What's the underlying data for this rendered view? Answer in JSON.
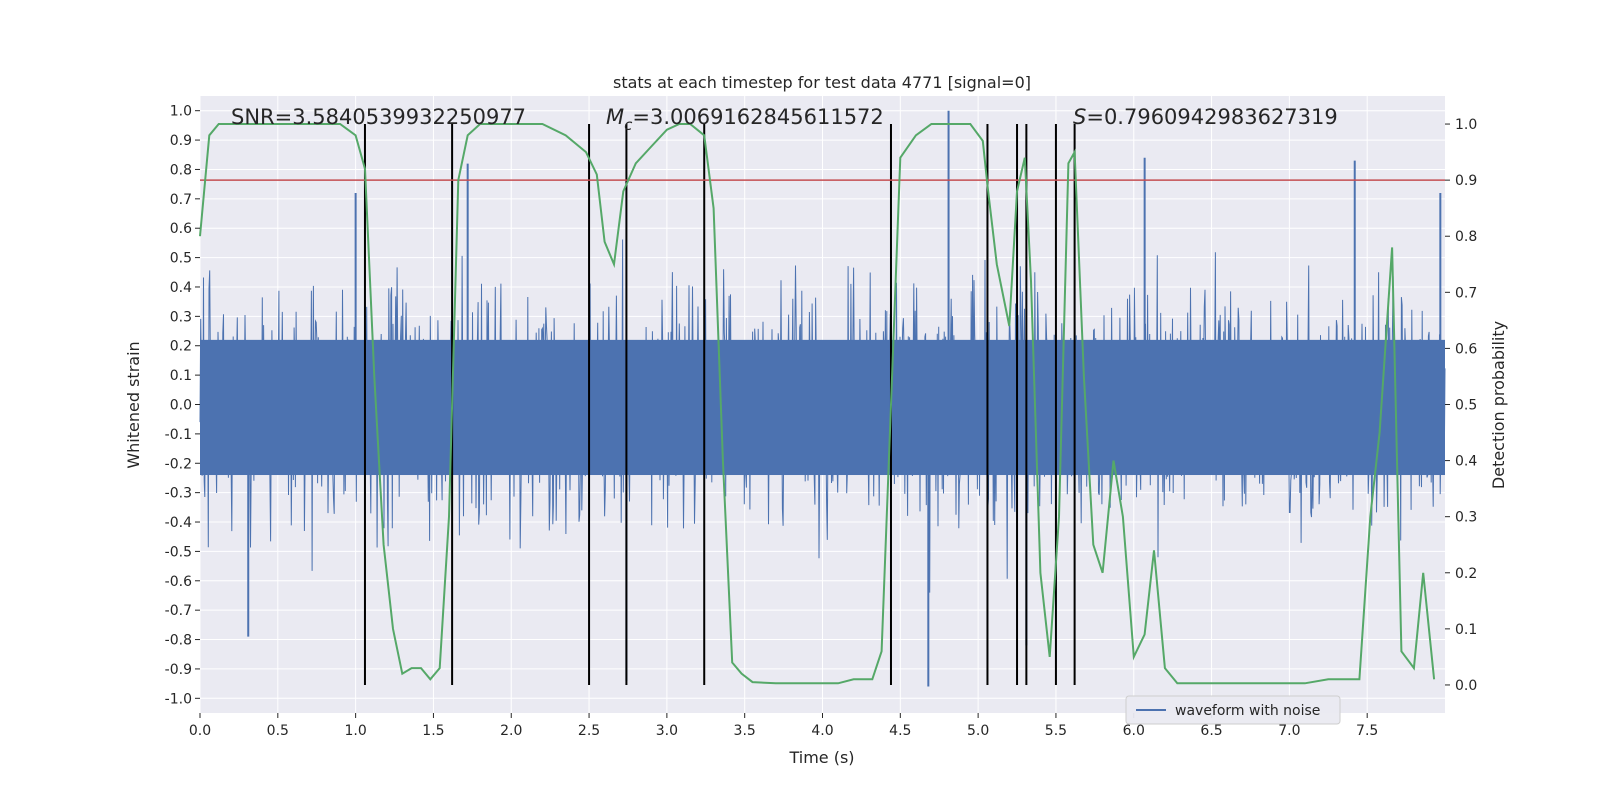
{
  "colors": {
    "background": "#eaeaf2",
    "grid": "#ffffff",
    "waveform": "#4c72b0",
    "probability": "#55a868",
    "threshold": "#c44e52",
    "event_lines": "#000000"
  },
  "chart_data": {
    "type": "line",
    "title": "stats at each timestep for test data 4771 [signal=0]",
    "xlabel": "Time (s)",
    "ylabel_left": "Whitened strain",
    "ylabel_right": "Detection probability",
    "xlim": [
      0.0,
      8.0
    ],
    "ylim_left": [
      -1.05,
      1.05
    ],
    "ylim_right": [
      -0.05,
      1.05
    ],
    "x_ticks": [
      "0.0",
      "0.5",
      "1.0",
      "1.5",
      "2.0",
      "2.5",
      "3.0",
      "3.5",
      "4.0",
      "4.5",
      "5.0",
      "5.5",
      "6.0",
      "6.5",
      "7.0",
      "7.5"
    ],
    "y_ticks_left": [
      "1.0",
      "0.9",
      "0.8",
      "0.7",
      "0.6",
      "0.5",
      "0.4",
      "0.3",
      "0.2",
      "0.1",
      "0.0",
      "-0.1",
      "-0.2",
      "-0.3",
      "-0.4",
      "-0.5",
      "-0.6",
      "-0.7",
      "-0.8",
      "-0.9",
      "-1.0"
    ],
    "y_ticks_right": [
      "1.0",
      "0.9",
      "0.8",
      "0.7",
      "0.6",
      "0.5",
      "0.4",
      "0.3",
      "0.2",
      "0.1",
      "0.0"
    ],
    "grid": true,
    "legend_position": "lower-right",
    "annotations": {
      "snr": "SNR=3.5840539932250977",
      "mc_symbol": "M",
      "mc_sub": "c",
      "mc_value": "=3.0069162845611572",
      "s_symbol": "S",
      "s_value": "=0.7960942983627319"
    },
    "threshold_right": 0.9,
    "event_lines_x": [
      1.06,
      1.62,
      2.5,
      2.74,
      3.24,
      4.44,
      5.06,
      5.25,
      5.31,
      5.5,
      5.62
    ],
    "series": [
      {
        "name": "waveform with noise",
        "axis": "left",
        "kind": "noise",
        "typical_amplitude": 0.42,
        "peak_amplitude": 0.86,
        "peaks": [
          [
            0.31,
            -0.79
          ],
          [
            1.0,
            0.72
          ],
          [
            1.72,
            0.82
          ],
          [
            2.74,
            -0.94
          ],
          [
            4.68,
            -0.96
          ],
          [
            4.81,
            1.0
          ],
          [
            5.31,
            -0.82
          ],
          [
            6.07,
            0.84
          ],
          [
            7.42,
            0.83
          ],
          [
            7.97,
            0.72
          ]
        ]
      },
      {
        "name": "Detection probability",
        "axis": "right",
        "x": [
          0.0,
          0.06,
          0.12,
          0.3,
          0.6,
          0.9,
          1.0,
          1.06,
          1.12,
          1.18,
          1.24,
          1.3,
          1.36,
          1.42,
          1.48,
          1.54,
          1.6,
          1.66,
          1.72,
          1.8,
          2.0,
          2.2,
          2.35,
          2.48,
          2.55,
          2.6,
          2.66,
          2.72,
          2.8,
          2.9,
          3.0,
          3.08,
          3.15,
          3.24,
          3.3,
          3.36,
          3.42,
          3.48,
          3.55,
          3.7,
          3.9,
          4.1,
          4.2,
          4.32,
          4.38,
          4.44,
          4.5,
          4.6,
          4.7,
          4.8,
          4.95,
          5.03,
          5.06,
          5.12,
          5.2,
          5.25,
          5.3,
          5.34,
          5.4,
          5.46,
          5.52,
          5.58,
          5.62,
          5.68,
          5.74,
          5.8,
          5.87,
          5.93,
          6.0,
          6.07,
          6.13,
          6.2,
          6.28,
          6.5,
          6.8,
          7.1,
          7.25,
          7.35,
          7.45,
          7.52,
          7.58,
          7.66,
          7.72,
          7.8,
          7.86,
          7.93
        ],
        "y": [
          0.8,
          0.98,
          1.0,
          1.0,
          1.0,
          1.0,
          0.98,
          0.92,
          0.55,
          0.25,
          0.1,
          0.02,
          0.03,
          0.03,
          0.01,
          0.03,
          0.3,
          0.9,
          0.98,
          1.0,
          1.0,
          1.0,
          0.98,
          0.95,
          0.91,
          0.79,
          0.75,
          0.88,
          0.93,
          0.96,
          0.99,
          1.0,
          1.0,
          0.98,
          0.85,
          0.4,
          0.04,
          0.02,
          0.005,
          0.003,
          0.003,
          0.003,
          0.01,
          0.01,
          0.06,
          0.5,
          0.94,
          0.98,
          1.0,
          1.0,
          1.0,
          0.97,
          0.89,
          0.75,
          0.64,
          0.88,
          0.94,
          0.72,
          0.2,
          0.05,
          0.3,
          0.93,
          0.95,
          0.55,
          0.25,
          0.2,
          0.4,
          0.3,
          0.05,
          0.09,
          0.24,
          0.03,
          0.003,
          0.003,
          0.003,
          0.003,
          0.01,
          0.01,
          0.01,
          0.3,
          0.45,
          0.78,
          0.06,
          0.03,
          0.2,
          0.01
        ]
      }
    ]
  }
}
